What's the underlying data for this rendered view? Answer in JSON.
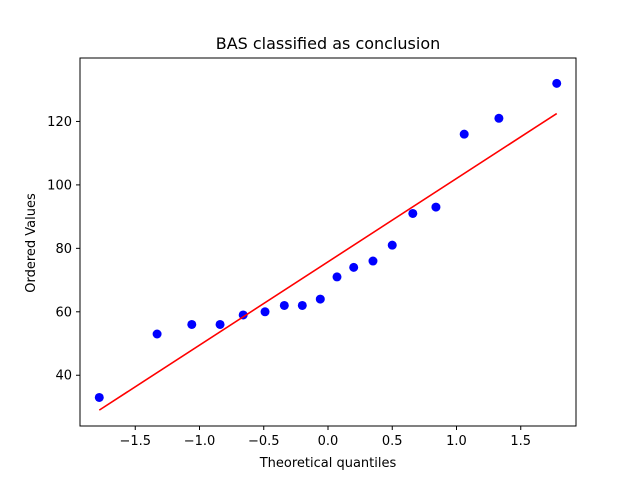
{
  "chart_data": {
    "type": "scatter",
    "title": "BAS classified as conclusion",
    "xlabel": "Theoretical quantiles",
    "ylabel": "Ordered Values",
    "xlim": [
      -1.93,
      1.93
    ],
    "ylim": [
      24,
      140
    ],
    "x_ticks": [
      -1.5,
      -1.0,
      -0.5,
      0.0,
      0.5,
      1.0,
      1.5
    ],
    "x_tick_labels": [
      "−1.5",
      "−1.0",
      "−0.5",
      "0.0",
      "0.5",
      "1.0",
      "1.5"
    ],
    "y_ticks": [
      40,
      60,
      80,
      100,
      120
    ],
    "y_tick_labels": [
      "40",
      "60",
      "80",
      "100",
      "120"
    ],
    "grid": false,
    "points": {
      "color": "#0000ff",
      "x": [
        -1.78,
        -1.33,
        -1.06,
        -0.84,
        -0.66,
        -0.49,
        -0.34,
        -0.2,
        -0.06,
        0.07,
        0.2,
        0.35,
        0.5,
        0.66,
        0.84,
        1.06,
        1.33,
        1.78
      ],
      "y": [
        33,
        53,
        56,
        56,
        59,
        60,
        62,
        62,
        64,
        71,
        74,
        76,
        81,
        91,
        93,
        116,
        121,
        132
      ]
    },
    "fit_line": {
      "color": "#ff0000",
      "x": [
        -1.78,
        1.78
      ],
      "y": [
        29,
        122.5
      ]
    }
  }
}
